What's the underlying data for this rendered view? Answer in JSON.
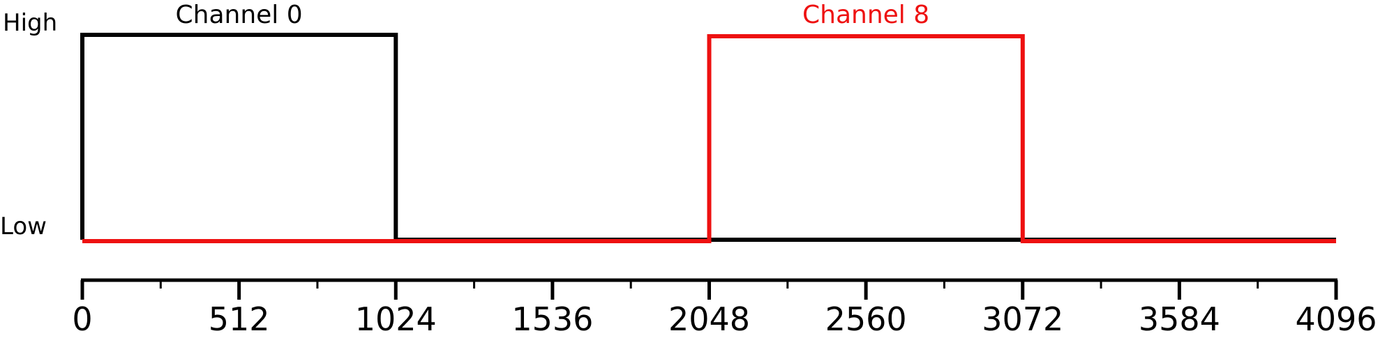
{
  "chart_data": {
    "type": "line",
    "title": "",
    "xlabel": "",
    "ylabel": "",
    "xlim": [
      0,
      4096
    ],
    "ylevels": [
      "Low",
      "High"
    ],
    "x_ticks": [
      0,
      512,
      1024,
      1536,
      2048,
      2560,
      3072,
      3584,
      4096
    ],
    "x_tick_labels": [
      "0",
      "512",
      "1024",
      "1536",
      "2048",
      "2560",
      "3072",
      "3584",
      "4096"
    ],
    "x_minor_ticks": [
      256,
      768,
      1280,
      1792,
      2304,
      2816,
      3328,
      3840
    ],
    "y_tick_labels": [
      "High",
      "Low"
    ],
    "grid": false,
    "series": [
      {
        "name": "Channel 0",
        "color": "#000000",
        "points": [
          [
            0,
            "Low"
          ],
          [
            0,
            "High"
          ],
          [
            1024,
            "High"
          ],
          [
            1024,
            "Low"
          ],
          [
            4096,
            "Low"
          ]
        ]
      },
      {
        "name": "Channel 8",
        "color": "#ee1111",
        "points": [
          [
            0,
            "Low"
          ],
          [
            2048,
            "Low"
          ],
          [
            2048,
            "High"
          ],
          [
            3072,
            "High"
          ],
          [
            3072,
            "Low"
          ],
          [
            4096,
            "Low"
          ]
        ]
      }
    ]
  }
}
